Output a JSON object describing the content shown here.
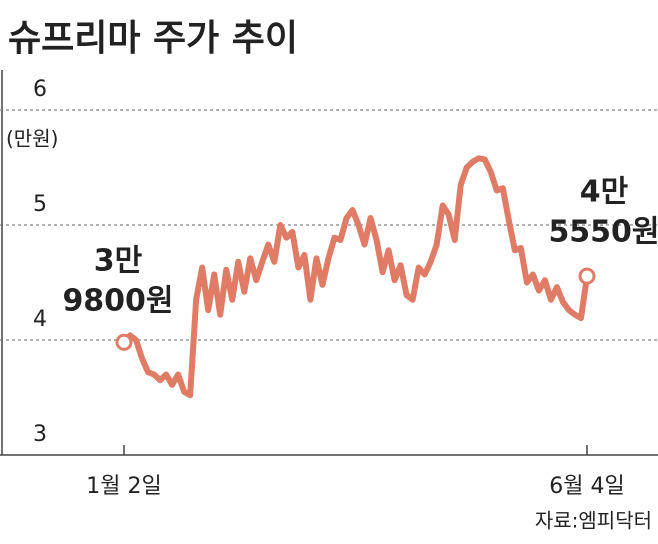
{
  "chart_data": {
    "type": "line",
    "title": "슈프리마 주가 추이",
    "y_unit": "(만원)",
    "source": "자료:엠피닥터",
    "categories": [
      "1월 2일",
      null,
      null,
      null,
      null,
      null,
      null,
      null,
      null,
      null,
      null,
      null,
      null,
      null,
      null,
      null,
      null,
      null,
      null,
      null,
      null,
      null,
      null,
      null,
      null,
      null,
      null,
      null,
      null,
      null,
      null,
      null,
      null,
      null,
      null,
      null,
      null,
      null,
      null,
      null,
      null,
      null,
      null,
      null,
      null,
      null,
      null,
      null,
      null,
      null,
      null,
      null,
      null,
      null,
      null,
      null,
      null,
      null,
      null,
      null,
      null,
      null,
      null,
      null,
      null,
      null,
      null,
      null,
      null,
      null,
      null,
      null,
      null,
      null,
      null,
      null,
      null,
      "6월 4일"
    ],
    "series": [
      {
        "name": "슈프리마",
        "color": "#e07b66",
        "values": [
          3.98,
          4.04,
          4.0,
          3.84,
          3.72,
          3.7,
          3.65,
          3.7,
          3.61,
          3.7,
          3.55,
          3.52,
          4.35,
          4.63,
          4.26,
          4.57,
          4.22,
          4.61,
          4.35,
          4.68,
          4.42,
          4.71,
          4.52,
          4.68,
          4.83,
          4.68,
          5.0,
          4.89,
          4.94,
          4.63,
          4.74,
          4.35,
          4.71,
          4.48,
          4.71,
          4.89,
          4.87,
          5.06,
          5.13,
          5.0,
          4.83,
          5.06,
          4.87,
          4.59,
          4.78,
          4.52,
          4.65,
          4.39,
          4.35,
          4.63,
          4.57,
          4.68,
          4.83,
          5.17,
          5.09,
          4.87,
          5.35,
          5.5,
          5.55,
          5.58,
          5.57,
          5.46,
          5.3,
          5.32,
          5.04,
          4.78,
          4.8,
          4.5,
          4.57,
          4.43,
          4.52,
          4.35,
          4.46,
          4.33,
          4.26,
          4.22,
          4.19,
          4.555
        ]
      }
    ],
    "annotations": [
      {
        "lines": [
          "3만",
          "9800원"
        ]
      },
      {
        "lines": [
          "4만",
          "5550원"
        ]
      }
    ],
    "ylim": [
      3,
      6
    ],
    "yticks": [
      3,
      4,
      5,
      6
    ],
    "grid": true
  }
}
